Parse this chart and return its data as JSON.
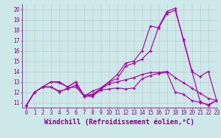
{
  "title": "",
  "xlabel": "Windchill (Refroidissement éolien,°C)",
  "ylabel": "",
  "xlim": [
    -0.5,
    23
  ],
  "ylim": [
    10.5,
    20.5
  ],
  "yticks": [
    11,
    12,
    13,
    14,
    15,
    16,
    17,
    18,
    19,
    20
  ],
  "xticks": [
    0,
    1,
    2,
    3,
    4,
    5,
    6,
    7,
    8,
    9,
    10,
    11,
    12,
    13,
    14,
    15,
    16,
    17,
    18,
    19,
    20,
    21,
    22,
    23
  ],
  "background_color": "#cce8e8",
  "grid_color": "#bbbbbb",
  "line_color": "#aa00aa",
  "series": [
    [
      10.7,
      12.0,
      12.5,
      12.5,
      12.0,
      12.4,
      12.5,
      11.6,
      11.6,
      12.2,
      12.3,
      12.4,
      12.3,
      12.4,
      13.3,
      13.6,
      13.8,
      13.9,
      12.0,
      11.8,
      11.2,
      11.0,
      10.8,
      11.2
    ],
    [
      10.7,
      12.0,
      12.5,
      12.5,
      12.1,
      12.3,
      12.7,
      11.7,
      11.8,
      12.3,
      12.8,
      13.0,
      13.2,
      13.4,
      13.7,
      13.9,
      13.9,
      14.0,
      13.4,
      12.9,
      12.4,
      11.9,
      11.4,
      11.2
    ],
    [
      10.7,
      12.0,
      12.5,
      13.0,
      13.0,
      12.5,
      13.0,
      11.6,
      11.7,
      12.3,
      13.0,
      13.3,
      14.5,
      14.8,
      15.2,
      16.0,
      18.3,
      19.8,
      20.1,
      17.0,
      14.0,
      13.5,
      14.0,
      11.2
    ],
    [
      10.7,
      12.0,
      12.5,
      13.0,
      12.9,
      12.5,
      13.0,
      11.6,
      12.1,
      12.4,
      13.0,
      13.7,
      14.8,
      15.0,
      16.0,
      18.4,
      18.2,
      19.6,
      19.9,
      17.1,
      14.1,
      11.1,
      10.7,
      11.2
    ]
  ],
  "font_color": "#880088",
  "tick_fontsize": 5.5,
  "xlabel_fontsize": 7.0,
  "linewidth": 0.9,
  "markersize": 3.5
}
